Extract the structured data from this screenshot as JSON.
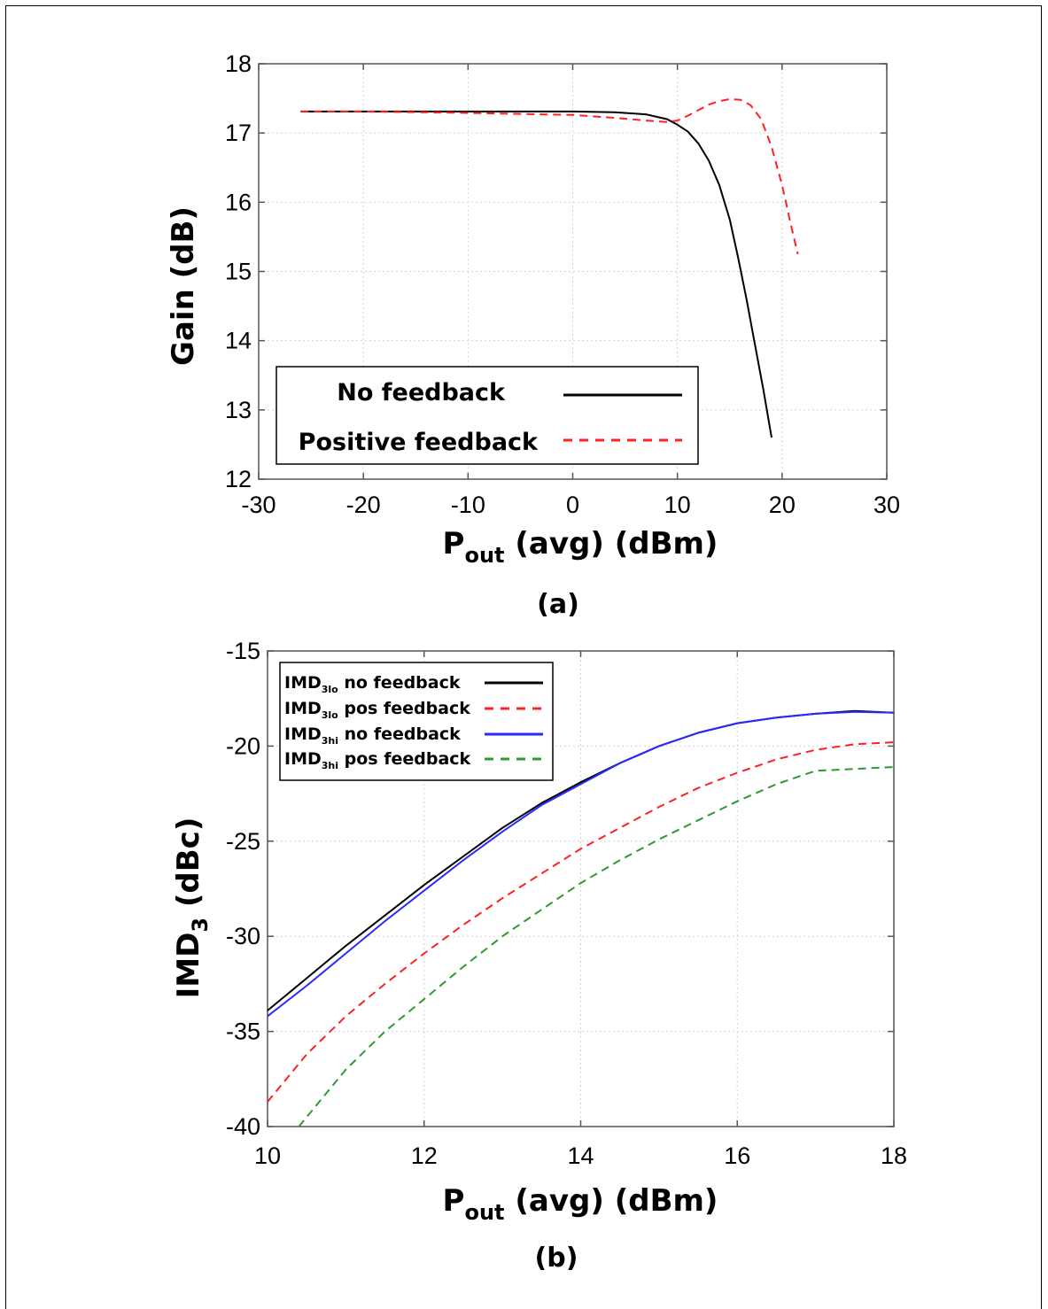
{
  "chart_data": [
    {
      "id": "a",
      "type": "line",
      "caption": "(a)",
      "xlabel": "P",
      "xlabel_sub": "out",
      "xlabel_rest": " (avg) (dBm)",
      "ylabel": "Gain (dB)",
      "xlim": [
        -30,
        30
      ],
      "ylim": [
        12,
        18
      ],
      "xticks": [
        "-30",
        "-20",
        "-10",
        "0",
        "10",
        "20",
        "30"
      ],
      "yticks": [
        "12",
        "13",
        "14",
        "15",
        "16",
        "17",
        "18"
      ],
      "grid": true,
      "legend": {
        "position": "bottom-left"
      },
      "series": [
        {
          "name": "No feedback",
          "color": "#000000",
          "style": "solid",
          "x": [
            -26,
            -20,
            -10,
            0,
            4,
            7,
            9,
            10,
            11,
            12,
            13,
            14,
            15,
            15.8,
            16.6,
            17.4,
            18.2,
            19
          ],
          "y": [
            17.31,
            17.31,
            17.31,
            17.31,
            17.3,
            17.27,
            17.2,
            17.12,
            17.02,
            16.85,
            16.6,
            16.25,
            15.75,
            15.2,
            14.6,
            13.95,
            13.3,
            12.6
          ]
        },
        {
          "name": "Positive feedback",
          "color": "#ff2020",
          "style": "dashed",
          "x": [
            -26,
            -20,
            -10,
            0,
            4,
            7,
            9,
            10,
            11,
            12,
            13,
            14,
            15,
            16,
            17,
            18,
            19,
            20,
            20.8,
            21.5
          ],
          "y": [
            17.31,
            17.31,
            17.29,
            17.26,
            17.22,
            17.18,
            17.16,
            17.18,
            17.25,
            17.33,
            17.41,
            17.46,
            17.49,
            17.48,
            17.4,
            17.2,
            16.8,
            16.25,
            15.7,
            15.25
          ]
        }
      ]
    },
    {
      "id": "b",
      "type": "line",
      "caption": "(b)",
      "xlabel": "P",
      "xlabel_sub": "out",
      "xlabel_rest": " (avg) (dBm)",
      "ylabel": "IMD",
      "ylabel_sub": "3",
      "ylabel_rest": " (dBc)",
      "xlim": [
        10,
        18
      ],
      "ylim": [
        -40,
        -15
      ],
      "xticks": [
        "10",
        "12",
        "14",
        "16",
        "18"
      ],
      "yticks": [
        "-40",
        "-35",
        "-30",
        "-25",
        "-20",
        "-15"
      ],
      "grid": true,
      "legend": {
        "position": "top-left"
      },
      "series": [
        {
          "name": "IMD",
          "name_sub": "3lo",
          "name_rest": " no feedback",
          "color": "#000000",
          "style": "solid",
          "x": [
            10,
            10.5,
            11,
            11.5,
            12,
            12.5,
            13,
            13.5,
            14,
            14.5,
            15,
            15.5,
            16,
            16.5,
            17,
            17.5,
            18
          ],
          "y": [
            -33.9,
            -32.2,
            -30.5,
            -28.9,
            -27.3,
            -25.8,
            -24.3,
            -23.0,
            -21.9,
            -20.9,
            -20.0,
            -19.3,
            -18.8,
            -18.5,
            -18.3,
            -18.15,
            -18.25
          ]
        },
        {
          "name": "IMD",
          "name_sub": "3lo",
          "name_rest": " pos feedback",
          "color": "#ff2020",
          "style": "dashed",
          "x": [
            10,
            10.5,
            11,
            11.5,
            12,
            12.5,
            13,
            13.5,
            14,
            14.5,
            15,
            15.5,
            16,
            16.5,
            17,
            17.5,
            18
          ],
          "y": [
            -38.7,
            -36.2,
            -34.2,
            -32.5,
            -30.9,
            -29.4,
            -28.0,
            -26.7,
            -25.4,
            -24.3,
            -23.2,
            -22.2,
            -21.4,
            -20.7,
            -20.2,
            -19.9,
            -19.8
          ]
        },
        {
          "name": "IMD",
          "name_sub": "3hi",
          "name_rest": " no feedback",
          "color": "#2a2aff",
          "style": "solid",
          "x": [
            10,
            10.5,
            11,
            11.5,
            12,
            12.5,
            13,
            13.5,
            14,
            14.5,
            15,
            15.5,
            16,
            16.5,
            17,
            17.5,
            18
          ],
          "y": [
            -34.2,
            -32.6,
            -30.9,
            -29.2,
            -27.6,
            -26.0,
            -24.5,
            -23.1,
            -22.0,
            -20.9,
            -20.0,
            -19.3,
            -18.8,
            -18.5,
            -18.3,
            -18.2,
            -18.25
          ]
        },
        {
          "name": "IMD",
          "name_sub": "3hi",
          "name_rest": " pos feedback",
          "color": "#2e9a2e",
          "style": "dashed",
          "x": [
            10.4,
            11,
            11.5,
            12,
            12.5,
            13,
            13.5,
            14,
            14.5,
            15,
            15.5,
            16,
            16.5,
            17,
            17.5,
            18
          ],
          "y": [
            -40,
            -37.0,
            -35.0,
            -33.3,
            -31.6,
            -30.0,
            -28.6,
            -27.2,
            -26.0,
            -24.9,
            -23.9,
            -22.9,
            -22.0,
            -21.3,
            -21.2,
            -21.1
          ]
        }
      ]
    }
  ]
}
